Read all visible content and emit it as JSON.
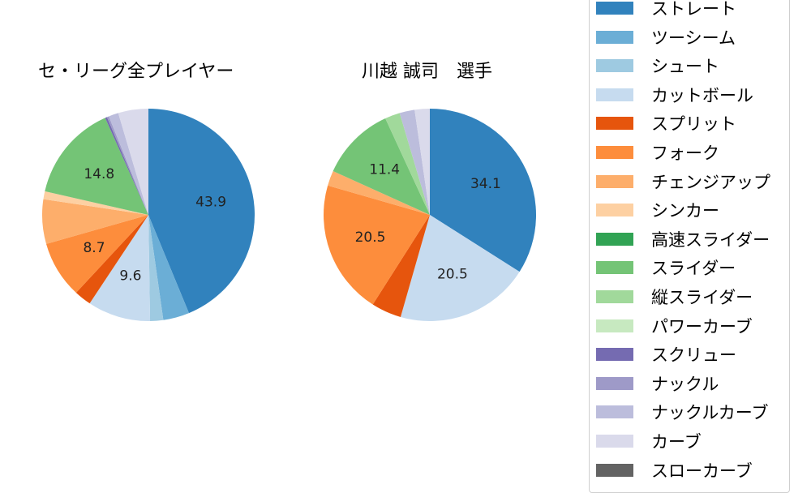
{
  "chart_data": [
    {
      "type": "pie",
      "title": "セ・リーグ全プレイヤー",
      "categories": [
        "ストレート",
        "ツーシーム",
        "シュート",
        "カットボール",
        "スプリット",
        "フォーク",
        "チェンジアップ",
        "シンカー",
        "高速スライダー",
        "スライダー",
        "縦スライダー",
        "パワーカーブ",
        "スクリュー",
        "ナックル",
        "ナックルカーブ",
        "カーブ",
        "スローカーブ"
      ],
      "values": [
        43.9,
        4.0,
        2.0,
        9.6,
        2.6,
        8.7,
        6.8,
        1.2,
        0,
        14.8,
        0,
        0,
        0.3,
        0.3,
        1.5,
        4.6,
        0
      ],
      "labels": [
        "43.9",
        "",
        "",
        "9.6",
        "",
        "8.7",
        "",
        "",
        "",
        "14.8",
        "",
        "",
        "",
        "",
        "",
        "",
        ""
      ]
    },
    {
      "type": "pie",
      "title": "川越 誠司　選手",
      "categories": [
        "ストレート",
        "ツーシーム",
        "シュート",
        "カットボール",
        "スプリット",
        "フォーク",
        "チェンジアップ",
        "シンカー",
        "高速スライダー",
        "スライダー",
        "縦スライダー",
        "パワーカーブ",
        "スクリュー",
        "ナックル",
        "ナックルカーブ",
        "カーブ",
        "スローカーブ"
      ],
      "values": [
        34.1,
        0,
        0,
        20.5,
        4.6,
        20.5,
        2.3,
        0,
        0,
        11.4,
        2.3,
        0,
        0,
        0,
        2.3,
        2.3,
        0
      ],
      "labels": [
        "34.1",
        "",
        "",
        "20.5",
        "",
        "20.5",
        "",
        "",
        "",
        "11.4",
        "",
        "",
        "",
        "",
        "",
        "",
        ""
      ]
    }
  ],
  "legend": {
    "items": [
      {
        "label": "ストレート",
        "color": "#3182bd"
      },
      {
        "label": "ツーシーム",
        "color": "#6baed6"
      },
      {
        "label": "シュート",
        "color": "#9ecae1"
      },
      {
        "label": "カットボール",
        "color": "#c6dbef"
      },
      {
        "label": "スプリット",
        "color": "#e6550d"
      },
      {
        "label": "フォーク",
        "color": "#fd8d3c"
      },
      {
        "label": "チェンジアップ",
        "color": "#fdae6b"
      },
      {
        "label": "シンカー",
        "color": "#fdd0a2"
      },
      {
        "label": "高速スライダー",
        "color": "#31a354"
      },
      {
        "label": "スライダー",
        "color": "#74c476"
      },
      {
        "label": "縦スライダー",
        "color": "#a1d99b"
      },
      {
        "label": "パワーカーブ",
        "color": "#c7e9c0"
      },
      {
        "label": "スクリュー",
        "color": "#756bb1"
      },
      {
        "label": "ナックル",
        "color": "#9e9ac8"
      },
      {
        "label": "ナックルカーブ",
        "color": "#bcbddc"
      },
      {
        "label": "カーブ",
        "color": "#dadaeb"
      },
      {
        "label": "スローカーブ",
        "color": "#636363"
      }
    ]
  }
}
